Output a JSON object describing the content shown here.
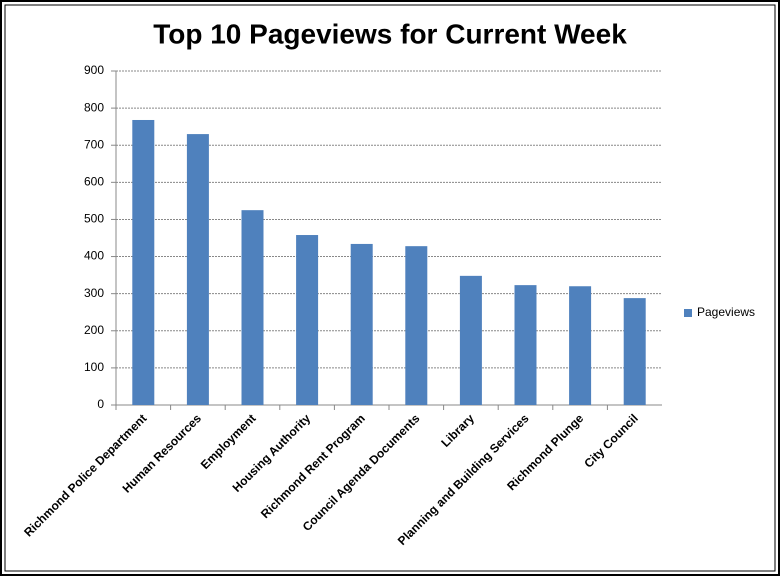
{
  "chart_data": {
    "type": "bar",
    "title": "Top 10 Pageviews for Current Week",
    "categories": [
      "Richmond Police Department",
      "Human Resources",
      "Employment",
      "Housing Authority",
      "Richmond Rent Program",
      "Council Agenda Documents",
      "Library",
      "Planning and Building Services",
      "Richmond Plunge",
      "City Council"
    ],
    "series": [
      {
        "name": "Pageviews",
        "color": "#4f81bd",
        "values": [
          768,
          730,
          525,
          458,
          434,
          428,
          348,
          323,
          320,
          288
        ]
      }
    ],
    "ylim": [
      0,
      900
    ],
    "yticks": [
      0,
      100,
      200,
      300,
      400,
      500,
      600,
      700,
      800,
      900
    ],
    "grid": true,
    "legend": "right"
  }
}
